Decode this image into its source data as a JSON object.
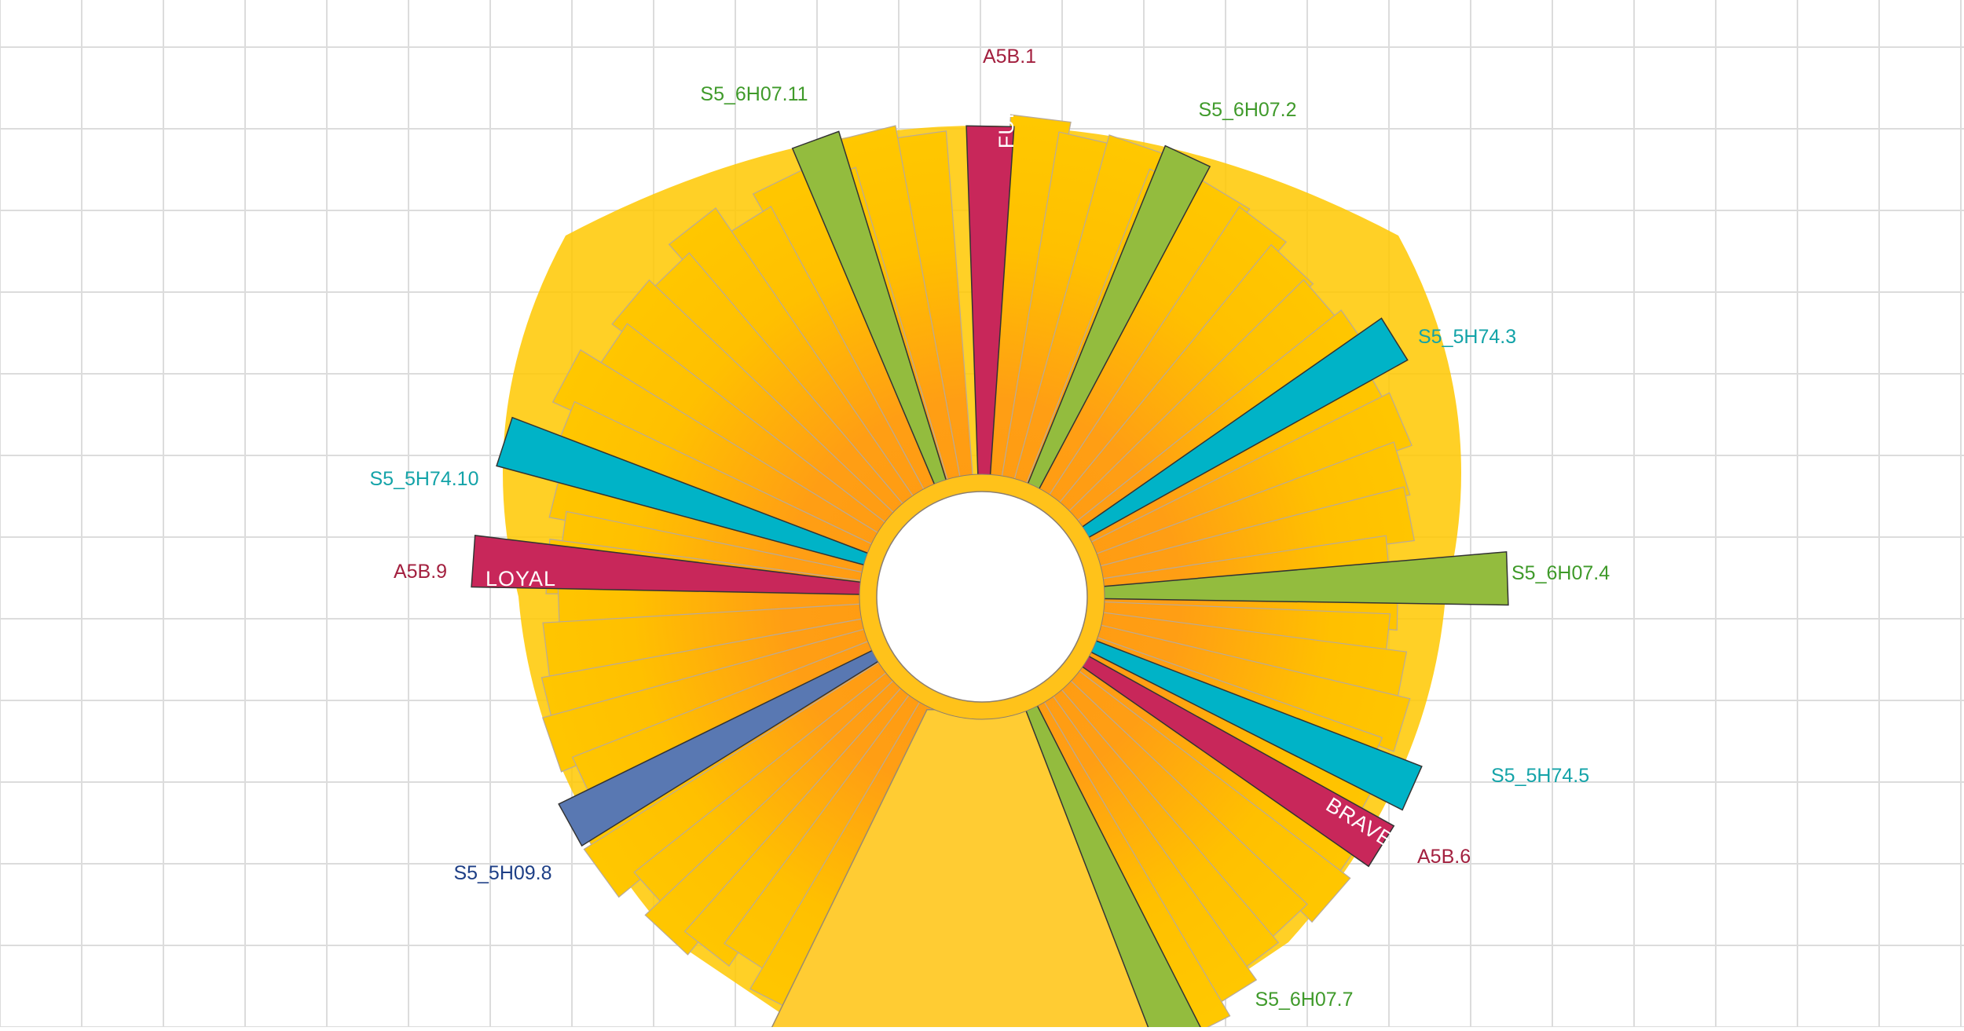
{
  "diagram": {
    "type": "radial-bar-chart",
    "colors": {
      "background": "#ffffff",
      "grid": "#dcdcdc",
      "bar_fill": "#ffc800",
      "bar_glow": "#ff9a10",
      "bar_edge": "#b8aa9a",
      "center_fan": "#ffcc33",
      "ring": "#ffc21a",
      "green": "#93bc3e",
      "green_text": "#3f9a2a",
      "crimson": "#c8275a",
      "crimson_text": "#a3203f",
      "teal": "#00b3c7",
      "teal_text": "#13a3a8",
      "blue": "#5978b2",
      "blue_text": "#1e3f86"
    },
    "highlights": [
      {
        "id": "A5B.1",
        "label": "A5B.1",
        "inner_text": "FUN",
        "color_key": "crimson"
      },
      {
        "id": "S5_6H07.11",
        "label": "S5_6H07.11",
        "color_key": "green"
      },
      {
        "id": "S5_6H07.2",
        "label": "S5_6H07.2",
        "color_key": "green"
      },
      {
        "id": "S5_5H74.3",
        "label": "S5_5H74.3",
        "color_key": "teal"
      },
      {
        "id": "S5_5H74.10",
        "label": "S5_5H74.10",
        "color_key": "teal"
      },
      {
        "id": "A5B.9",
        "label": "A5B.9",
        "inner_text": "LOYAL",
        "color_key": "crimson"
      },
      {
        "id": "S5_6H07.4",
        "label": "S5_6H07.4",
        "color_key": "green"
      },
      {
        "id": "S5_5H74.5",
        "label": "S5_5H74.5",
        "color_key": "teal"
      },
      {
        "id": "A5B.6",
        "label": "A5B.6",
        "inner_text": "BRAVE",
        "color_key": "crimson"
      },
      {
        "id": "S5_5H09.8",
        "label": "S5_5H09.8",
        "color_key": "blue"
      },
      {
        "id": "S5_6H07.7",
        "label": "S5_6H07.7",
        "color_key": "green"
      }
    ]
  }
}
